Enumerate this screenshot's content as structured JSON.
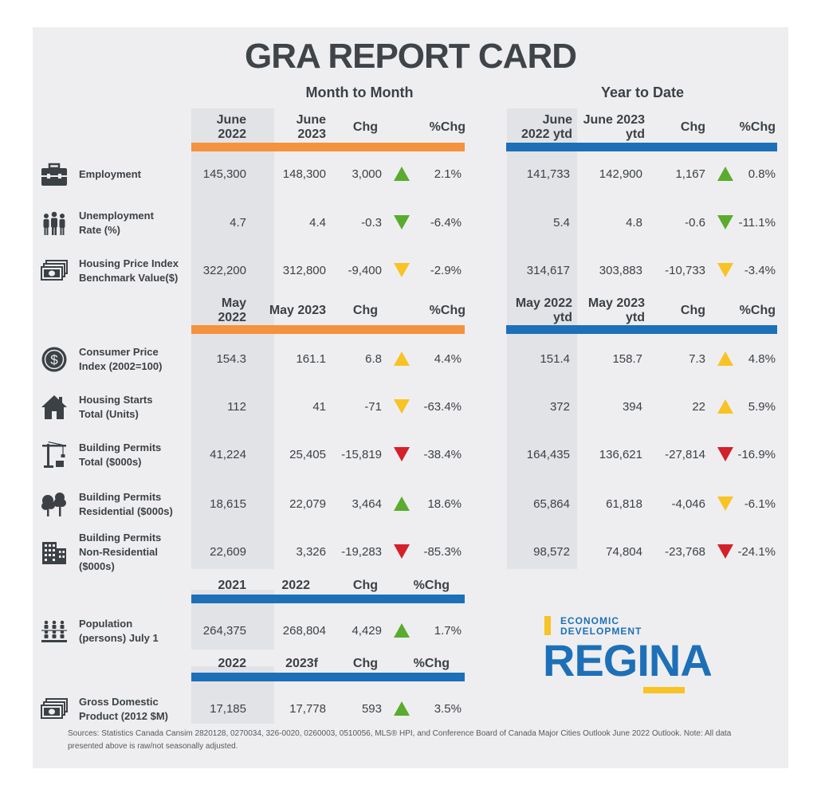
{
  "title": "GRA REPORT CARD",
  "sections": {
    "mtm": "Month to Month",
    "ytd": "Year to Date"
  },
  "headers": {
    "h1": {
      "c1a": "June",
      "c1b": "2022",
      "c2a": "June",
      "c2b": "2023",
      "c3": "Chg",
      "c4": "%Chg",
      "c5a": "June",
      "c5b": "2022 ytd",
      "c6a": "June 2023",
      "c6b": "ytd",
      "c7": "Chg",
      "c8": "%Chg"
    },
    "h2": {
      "c1a": "May",
      "c1b": "2022",
      "c2": "May 2023",
      "c3": "Chg",
      "c4": "%Chg",
      "c5a": "May 2022",
      "c5b": "ytd",
      "c6a": "May 2023",
      "c6b": "ytd",
      "c7": "Chg",
      "c8": "%Chg"
    },
    "h3": {
      "c1": "2021",
      "c2": "2022",
      "c3": "Chg",
      "c4": "%Chg"
    },
    "h4": {
      "c1": "2022",
      "c2": "2023f",
      "c3": "Chg",
      "c4": "%Chg"
    }
  },
  "rows": [
    {
      "icon": "briefcase-icon",
      "l1": "Employment",
      "l2": "",
      "l3": "",
      "m1": "145,300",
      "m2": "148,300",
      "m3": "3,000",
      "mt": "up-green",
      "m4": "2.1%",
      "y1": "141,733",
      "y2": "142,900",
      "y3": "1,167",
      "yt": "up-green",
      "y4": "0.8%"
    },
    {
      "icon": "people-icon",
      "l1": "Unemployment",
      "l2": "Rate (%)",
      "l3": "",
      "m1": "4.7",
      "m2": "4.4",
      "m3": "-0.3",
      "mt": "down-green",
      "m4": "-6.4%",
      "y1": "5.4",
      "y2": "4.8",
      "y3": "-0.6",
      "yt": "down-green",
      "y4": "-11.1%"
    },
    {
      "icon": "money-icon",
      "l1": "Housing Price Index",
      "l2": "Benchmark Value($)",
      "l3": "",
      "m1": "322,200",
      "m2": "312,800",
      "m3": "-9,400",
      "mt": "down-yellow",
      "m4": "-2.9%",
      "y1": "314,617",
      "y2": "303,883",
      "y3": "-10,733",
      "yt": "down-yellow",
      "y4": "-3.4%"
    },
    {
      "icon": "dollar-coin-icon",
      "l1": "Consumer Price",
      "l2": "Index (2002=100)",
      "l3": "",
      "m1": "154.3",
      "m2": "161.1",
      "m3": "6.8",
      "mt": "up-yellow",
      "m4": "4.4%",
      "y1": "151.4",
      "y2": "158.7",
      "y3": "7.3",
      "yt": "up-yellow",
      "y4": "4.8%"
    },
    {
      "icon": "house-icon",
      "l1": "Housing Starts",
      "l2": "Total (Units)",
      "l3": "",
      "m1": "112",
      "m2": "41",
      "m3": "-71",
      "mt": "down-yellow",
      "m4": "-63.4%",
      "y1": "372",
      "y2": "394",
      "y3": "22",
      "yt": "up-yellow",
      "y4": "5.9%"
    },
    {
      "icon": "crane-icon",
      "l1": "Building Permits",
      "l2": "Total ($000s)",
      "l3": "",
      "m1": "41,224",
      "m2": "25,405",
      "m3": "-15,819",
      "mt": "down-red",
      "m4": "-38.4%",
      "y1": "164,435",
      "y2": "136,621",
      "y3": "-27,814",
      "yt": "down-red",
      "y4": "-16.9%"
    },
    {
      "icon": "trees-icon",
      "l1": "Building Permits",
      "l2": "Residential ($000s)",
      "l3": "",
      "m1": "18,615",
      "m2": "22,079",
      "m3": "3,464",
      "mt": "up-green",
      "m4": "18.6%",
      "y1": "65,864",
      "y2": "61,818",
      "y3": "-4,046",
      "yt": "down-yellow",
      "y4": "-6.1%"
    },
    {
      "icon": "office-building-icon",
      "l1": "Building Permits",
      "l2": "Non-Residential",
      "l3": "($000s)",
      "m1": "22,609",
      "m2": "3,326",
      "m3": "-19,283",
      "mt": "down-red",
      "m4": "-85.3%",
      "y1": "98,572",
      "y2": "74,804",
      "y3": "-23,768",
      "yt": "down-red",
      "y4": "-24.1%"
    },
    {
      "icon": "population-icon",
      "l1": "Population",
      "l2": "(persons) July 1",
      "l3": "",
      "m1": "264,375",
      "m2": "268,804",
      "m3": "4,429",
      "mt": "up-green",
      "m4": "1.7%"
    },
    {
      "icon": "money-icon",
      "l1": "Gross Domestic",
      "l2": "Product (2012 $M)",
      "l3": "",
      "m1": "17,185",
      "m2": "17,778",
      "m3": "593",
      "mt": "up-green",
      "m4": "3.5%"
    }
  ],
  "logo": {
    "line1": "ECONOMIC",
    "line2": "DEVELOPMENT",
    "word": "REGINA"
  },
  "sources": {
    "line1": "Sources: Statistics Canada Cansim 2820128, 0270034, 326-0020, 0260003, 0510056, MLS® HPI, and Conference Board of Canada Major Cities Outlook June 2022 Outlook. Note: All data",
    "line2": "presented above is raw/not seasonally adjusted."
  },
  "colors": {
    "orange": "#f5923e",
    "blue": "#1d70b8",
    "green": "#5aab2e",
    "yellow": "#f7c325",
    "red": "#d3202a"
  }
}
